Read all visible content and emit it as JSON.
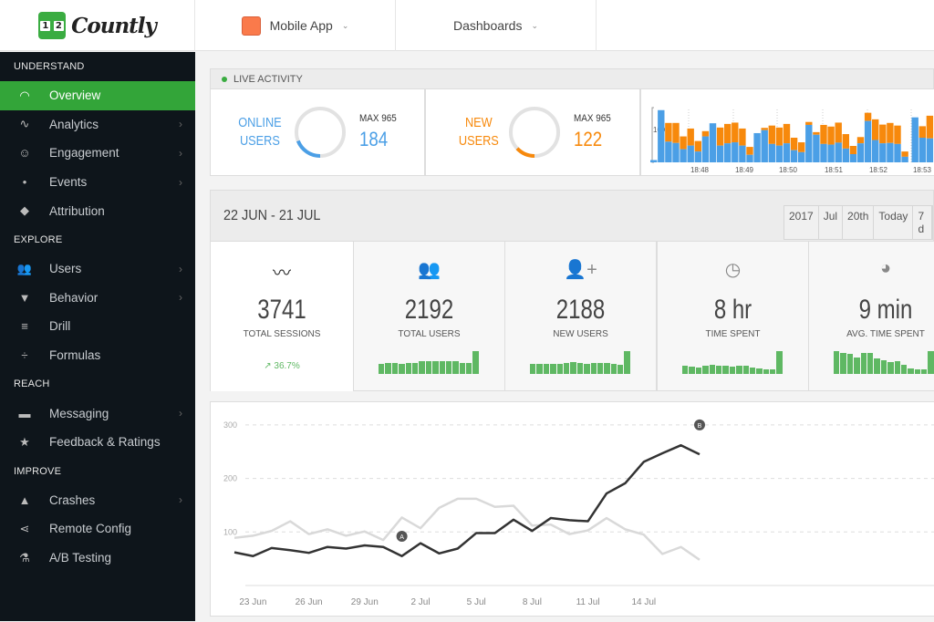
{
  "header": {
    "logo": "Countly",
    "app": "Mobile App",
    "app_color": "#fa7a4b",
    "dashboards": "Dashboards"
  },
  "sidebar": {
    "sections": [
      {
        "title": "UNDERSTAND",
        "items": [
          {
            "label": "Overview",
            "icon": "gauge-icon",
            "active": true
          },
          {
            "label": "Analytics",
            "icon": "pulse-icon",
            "arrow": true
          },
          {
            "label": "Engagement",
            "icon": "smiley-icon",
            "arrow": true
          },
          {
            "label": "Events",
            "icon": "dots-icon",
            "arrow": true
          },
          {
            "label": "Attribution",
            "icon": "tag-icon"
          }
        ]
      },
      {
        "title": "EXPLORE",
        "items": [
          {
            "label": "Users",
            "icon": "users-icon",
            "arrow": true
          },
          {
            "label": "Behavior",
            "icon": "funnel-icon",
            "arrow": true
          },
          {
            "label": "Drill",
            "icon": "filter-lines-icon"
          },
          {
            "label": "Formulas",
            "icon": "divide-icon"
          }
        ]
      },
      {
        "title": "REACH",
        "items": [
          {
            "label": "Messaging",
            "icon": "chat-icon",
            "arrow": true
          },
          {
            "label": "Feedback & Ratings",
            "icon": "star-icon"
          }
        ]
      },
      {
        "title": "IMPROVE",
        "items": [
          {
            "label": "Crashes",
            "icon": "warning-icon",
            "arrow": true
          },
          {
            "label": "Remote Config",
            "icon": "share-icon"
          },
          {
            "label": "A/B Testing",
            "icon": "flask-icon"
          }
        ]
      }
    ]
  },
  "live": {
    "title": "LIVE ACTIVITY",
    "online": {
      "label1": "ONLINE",
      "label2": "USERS",
      "max": "MAX 965",
      "value": "184",
      "color": "#4b9fe6",
      "fraction": 0.19
    },
    "new": {
      "label1": "NEW",
      "label2": "USERS",
      "max": "MAX 965",
      "value": "122",
      "color": "#f7890c",
      "fraction": 0.13
    },
    "axis_label": "100",
    "ticks": [
      "18:48",
      "18:49",
      "18:50",
      "18:51",
      "18:52",
      "18:53"
    ],
    "blue": [
      7,
      159,
      63,
      59,
      40,
      51,
      33,
      79,
      119,
      51,
      58,
      61,
      51,
      23,
      89,
      98,
      56,
      51,
      58,
      37,
      31,
      114,
      84,
      56,
      54,
      60,
      42,
      25,
      58,
      126,
      68,
      58,
      59,
      56,
      17,
      null,
      137,
      75,
      73
    ],
    "total": [
      7,
      159,
      120,
      120,
      79,
      103,
      65,
      95,
      119,
      106,
      117,
      121,
      103,
      47,
      89,
      105,
      112,
      106,
      117,
      75,
      61,
      123,
      92,
      114,
      109,
      121,
      86,
      50,
      77,
      151,
      131,
      115,
      120,
      112,
      33,
      null,
      137,
      110,
      142
    ]
  },
  "dashboard": {
    "date_range": "22 JUN - 21 JUL",
    "buttons": [
      "2017",
      "Jul",
      "20th",
      "Today",
      "7 d"
    ],
    "cards": [
      {
        "icon": "trend-line-icon",
        "value": "3741",
        "label": "TOTAL SESSIONS",
        "trend": "36.7%"
      },
      {
        "icon": "users-icon",
        "value": "2192",
        "label": "TOTAL USERS",
        "spark": [
          40,
          42,
          42,
          40,
          42,
          44,
          48,
          50,
          50,
          50,
          50,
          48,
          44,
          42,
          88
        ]
      },
      {
        "icon": "user-plus-icon",
        "value": "2188",
        "label": "NEW USERS",
        "spark": [
          38,
          40,
          40,
          38,
          40,
          44,
          46,
          44,
          40,
          42,
          44,
          42,
          38,
          34,
          88
        ]
      },
      {
        "icon": "clock-icon",
        "value": "8 hr",
        "label": "TIME SPENT",
        "spark": [
          30,
          28,
          26,
          30,
          34,
          30,
          30,
          28,
          30,
          32,
          26,
          22,
          18,
          16,
          88
        ]
      },
      {
        "icon": "pie-icon",
        "value": "9 min",
        "label": "AVG. TIME SPENT",
        "spark": [
          88,
          80,
          76,
          64,
          80,
          80,
          60,
          52,
          46,
          48,
          34,
          22,
          16,
          16,
          88
        ]
      }
    ]
  },
  "chart_data": {
    "type": "line",
    "x": [
      "22 Jun",
      "23 Jun",
      "24 Jun",
      "25 Jun",
      "26 Jun",
      "27 Jun",
      "28 Jun",
      "29 Jun",
      "30 Jun",
      "1 Jul",
      "2 Jul",
      "3 Jul",
      "4 Jul",
      "5 Jul",
      "6 Jul",
      "7 Jul",
      "8 Jul",
      "9 Jul",
      "10 Jul",
      "11 Jul",
      "12 Jul",
      "13 Jul",
      "14 Jul",
      "15 Jul",
      "16 Jul",
      "17 Jul"
    ],
    "xticks": [
      "23 Jun",
      "26 Jun",
      "29 Jun",
      "2 Jul",
      "5 Jul",
      "8 Jul",
      "11 Jul",
      "14 Jul"
    ],
    "yticks": [
      "100",
      "200",
      "300"
    ],
    "ylim": [
      0,
      300
    ],
    "grid": true,
    "series": [
      {
        "color": "#333333",
        "values": [
          62,
          55,
          70,
          66,
          61,
          72,
          69,
          75,
          72,
          55,
          79,
          60,
          69,
          98,
          98,
          123,
          102,
          126,
          122,
          120,
          172,
          191,
          231,
          247,
          262,
          245
        ]
      },
      {
        "color": "#d9d9d9",
        "values": [
          89,
          93,
          102,
          120,
          96,
          105,
          93,
          101,
          85,
          127,
          107,
          145,
          162,
          162,
          147,
          149,
          112,
          114,
          96,
          103,
          126,
          105,
          95,
          59,
          72,
          48
        ]
      }
    ],
    "annotations": [
      {
        "label": "A",
        "x": "1 Jul",
        "y": 92
      },
      {
        "label": "B",
        "x": "17 Jul",
        "y": 300
      }
    ]
  }
}
